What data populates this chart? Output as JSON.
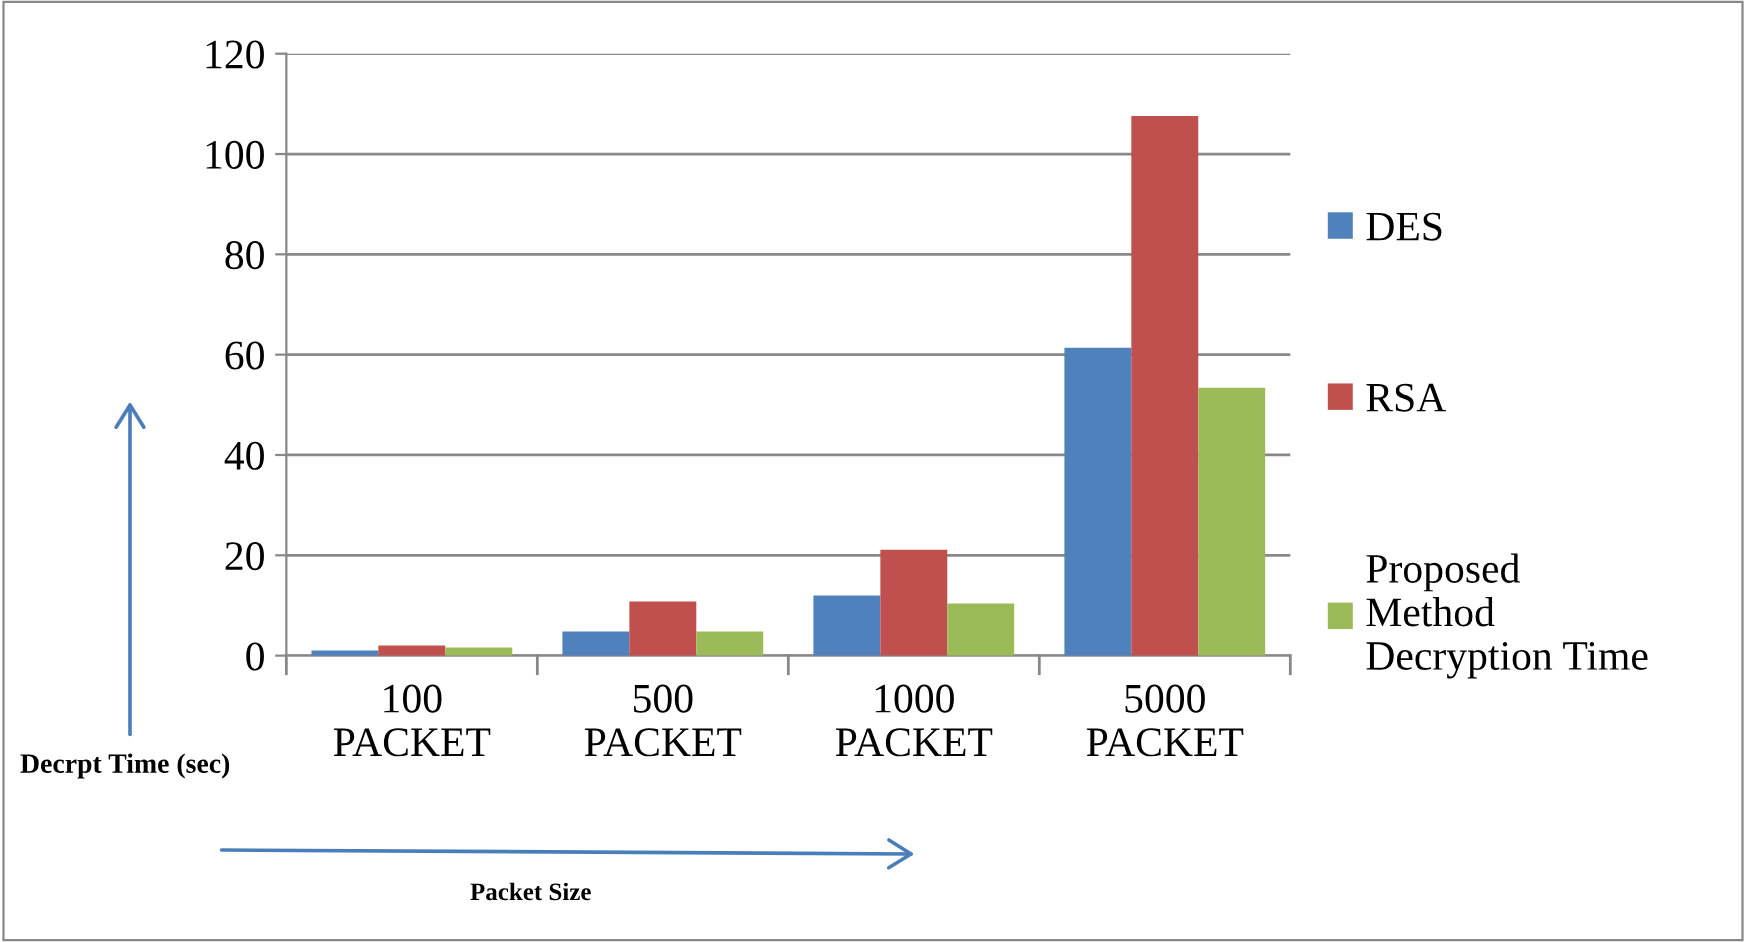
{
  "chart_data": {
    "type": "bar",
    "categories": [
      "100\nPACKET",
      "500\nPACKET",
      "1000\nPACKET",
      "5000\nPACKET"
    ],
    "series": [
      {
        "name": "DES",
        "color": "#4f81bd",
        "values": [
          1,
          4.8,
          12,
          61.4
        ]
      },
      {
        "name": "RSA",
        "color": "#c0504d",
        "values": [
          2,
          10.8,
          21.1,
          107.6
        ]
      },
      {
        "name": "Proposed\nMethod\nDecryption Time",
        "color": "#9bbb59",
        "values": [
          1.6,
          4.8,
          10.4,
          53.4
        ]
      }
    ],
    "annotations": [
      "Decrpt Time (sec)",
      "Packet Size"
    ],
    "ylim": [
      0,
      120
    ],
    "yticks": [
      0,
      20,
      40,
      60,
      80,
      100,
      120
    ],
    "grid": "y",
    "legend": "right"
  }
}
